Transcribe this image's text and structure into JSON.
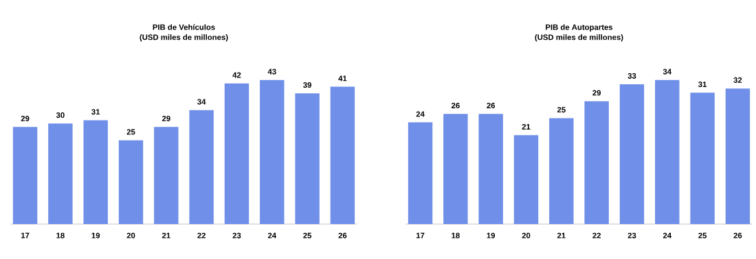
{
  "chart_data": [
    {
      "type": "bar",
      "title": "PIB de Vehículos",
      "subtitle": "(USD miles de millones)",
      "categories": [
        "17",
        "18",
        "19",
        "20",
        "21",
        "22",
        "23",
        "24",
        "25",
        "26"
      ],
      "values": [
        29,
        30,
        31,
        25,
        29,
        34,
        42,
        43,
        39,
        41
      ],
      "color": "#6f8fe8",
      "data_labels": true
    },
    {
      "type": "bar",
      "title": "PIB de Autopartes",
      "subtitle": "(USD miles de millones)",
      "categories": [
        "17",
        "18",
        "19",
        "20",
        "21",
        "22",
        "23",
        "24",
        "25",
        "26"
      ],
      "values": [
        24,
        26,
        26,
        21,
        25,
        29,
        33,
        34,
        31,
        32
      ],
      "color": "#6f8fe8",
      "data_labels": true
    }
  ]
}
